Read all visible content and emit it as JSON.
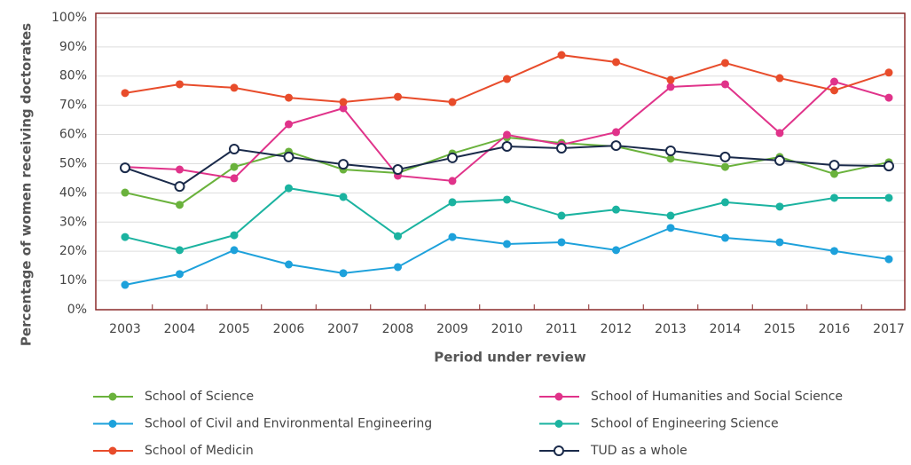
{
  "chart_data": {
    "type": "line",
    "ylabel": "Percentage of women receiving doctorates",
    "xlabel": "Period under review",
    "categories": [
      "2003",
      "2004",
      "2005",
      "2006",
      "2007",
      "2008",
      "2009",
      "2010",
      "2011",
      "2012",
      "2013",
      "2014",
      "2015",
      "2016",
      "2017"
    ],
    "ylim": [
      0,
      101.5
    ],
    "yticks": [
      {
        "value": 0,
        "label": "0%"
      },
      {
        "value": 10,
        "label": "10%"
      },
      {
        "value": 20,
        "label": "20%"
      },
      {
        "value": 30,
        "label": "30%"
      },
      {
        "value": 40,
        "label": "40%"
      },
      {
        "value": 50,
        "label": "50%"
      },
      {
        "value": 60,
        "label": "60%"
      },
      {
        "value": 70,
        "label": "70%"
      },
      {
        "value": 80,
        "label": "80%"
      },
      {
        "value": 90,
        "label": "90%"
      },
      {
        "value": 100,
        "label": "100%"
      }
    ],
    "grid": true,
    "series": [
      {
        "name": "School of Science",
        "color": "#6ab23c",
        "values": [
          40.1,
          35.9,
          48.9,
          54.1,
          48.0,
          46.8,
          53.5,
          59.0,
          57.1,
          55.9,
          51.7,
          48.9,
          52.3,
          46.5,
          50.5
        ]
      },
      {
        "name": "School of Humanities and Social Science",
        "color": "#e0338a",
        "values": [
          48.9,
          48.0,
          45.0,
          63.5,
          69.0,
          45.9,
          44.1,
          59.9,
          56.5,
          60.8,
          76.3,
          77.2,
          60.5,
          78.1,
          72.6
        ]
      },
      {
        "name": "School of Civil and Environmental Engineering",
        "color": "#1da1db",
        "values": [
          8.5,
          12.2,
          20.4,
          15.5,
          12.5,
          14.6,
          24.9,
          22.5,
          23.1,
          20.4,
          28.0,
          24.6,
          23.1,
          20.1,
          17.3
        ]
      },
      {
        "name": "School of Engineering Science",
        "color": "#1bb3a0",
        "values": [
          24.9,
          20.4,
          25.5,
          41.6,
          38.6,
          25.2,
          36.8,
          37.7,
          32.2,
          34.3,
          32.2,
          36.8,
          35.3,
          38.3,
          38.3
        ]
      },
      {
        "name": "School of Medicin",
        "color": "#e84c2b",
        "values": [
          74.2,
          77.2,
          76.0,
          72.6,
          71.1,
          72.9,
          71.1,
          79.0,
          87.2,
          84.8,
          78.7,
          84.5,
          79.3,
          75.1,
          81.2
        ]
      },
      {
        "name": "TUD as a whole",
        "color": "#1a2a4a",
        "hollow": true,
        "values": [
          48.6,
          42.2,
          55.0,
          52.3,
          49.8,
          48.0,
          52.0,
          55.9,
          55.3,
          56.2,
          54.4,
          52.3,
          51.1,
          49.5,
          49.2
        ]
      }
    ]
  }
}
